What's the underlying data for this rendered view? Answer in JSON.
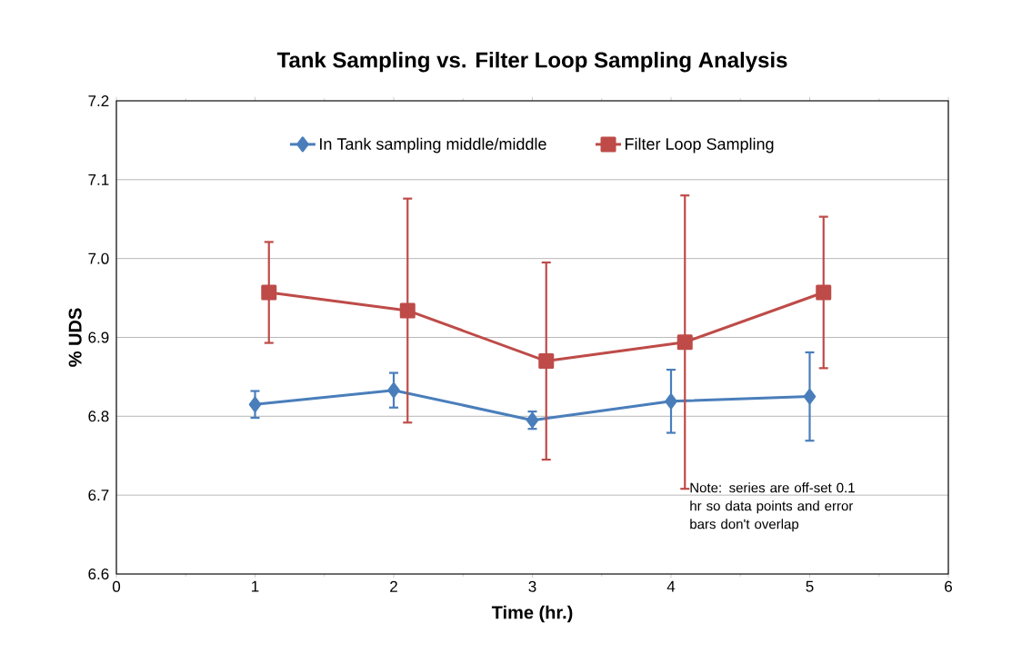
{
  "chart_data": {
    "type": "line",
    "title": "Tank Sampling vs. Filter Loop Sampling Analysis",
    "xlabel": "Time (hr.)",
    "ylabel": "% UDS",
    "xlim": [
      0,
      6
    ],
    "xticks": [
      0,
      1,
      2,
      3,
      4,
      5,
      6
    ],
    "ylim": [
      6.6,
      7.2
    ],
    "yticks": [
      {
        "value": 6.6,
        "label": "6.6"
      },
      {
        "value": 6.7,
        "label": "6.7"
      },
      {
        "value": 6.8,
        "label": "6.8"
      },
      {
        "value": 6.9,
        "label": "6.9"
      },
      {
        "value": 7.0,
        "label": "7.0"
      },
      {
        "value": 7.1,
        "label": "7.1"
      },
      {
        "value": 7.2,
        "label": "7.2"
      }
    ],
    "grid": "y",
    "legend": "top",
    "line_style": "solid",
    "series": [
      {
        "name": "In Tank sampling middle/middle",
        "color": "#4a7ebb",
        "marker": "diamond",
        "x": [
          1,
          2,
          3,
          4,
          5
        ],
        "values": [
          6.815,
          6.833,
          6.795,
          6.819,
          6.825
        ],
        "errors": [
          0.017,
          0.022,
          0.011,
          0.04,
          0.056
        ]
      },
      {
        "name": "Filter Loop Sampling",
        "color": "#be4b48",
        "marker": "square",
        "x": [
          1.1,
          2.1,
          3.1,
          4.1,
          5.1
        ],
        "values": [
          6.957,
          6.934,
          6.87,
          6.894,
          6.957
        ],
        "errors": [
          0.064,
          0.142,
          0.125,
          0.186,
          0.096
        ]
      }
    ],
    "annotations": [
      "Note: series are off-set 0.1 hr so data points and error bars don't overlap"
    ]
  }
}
